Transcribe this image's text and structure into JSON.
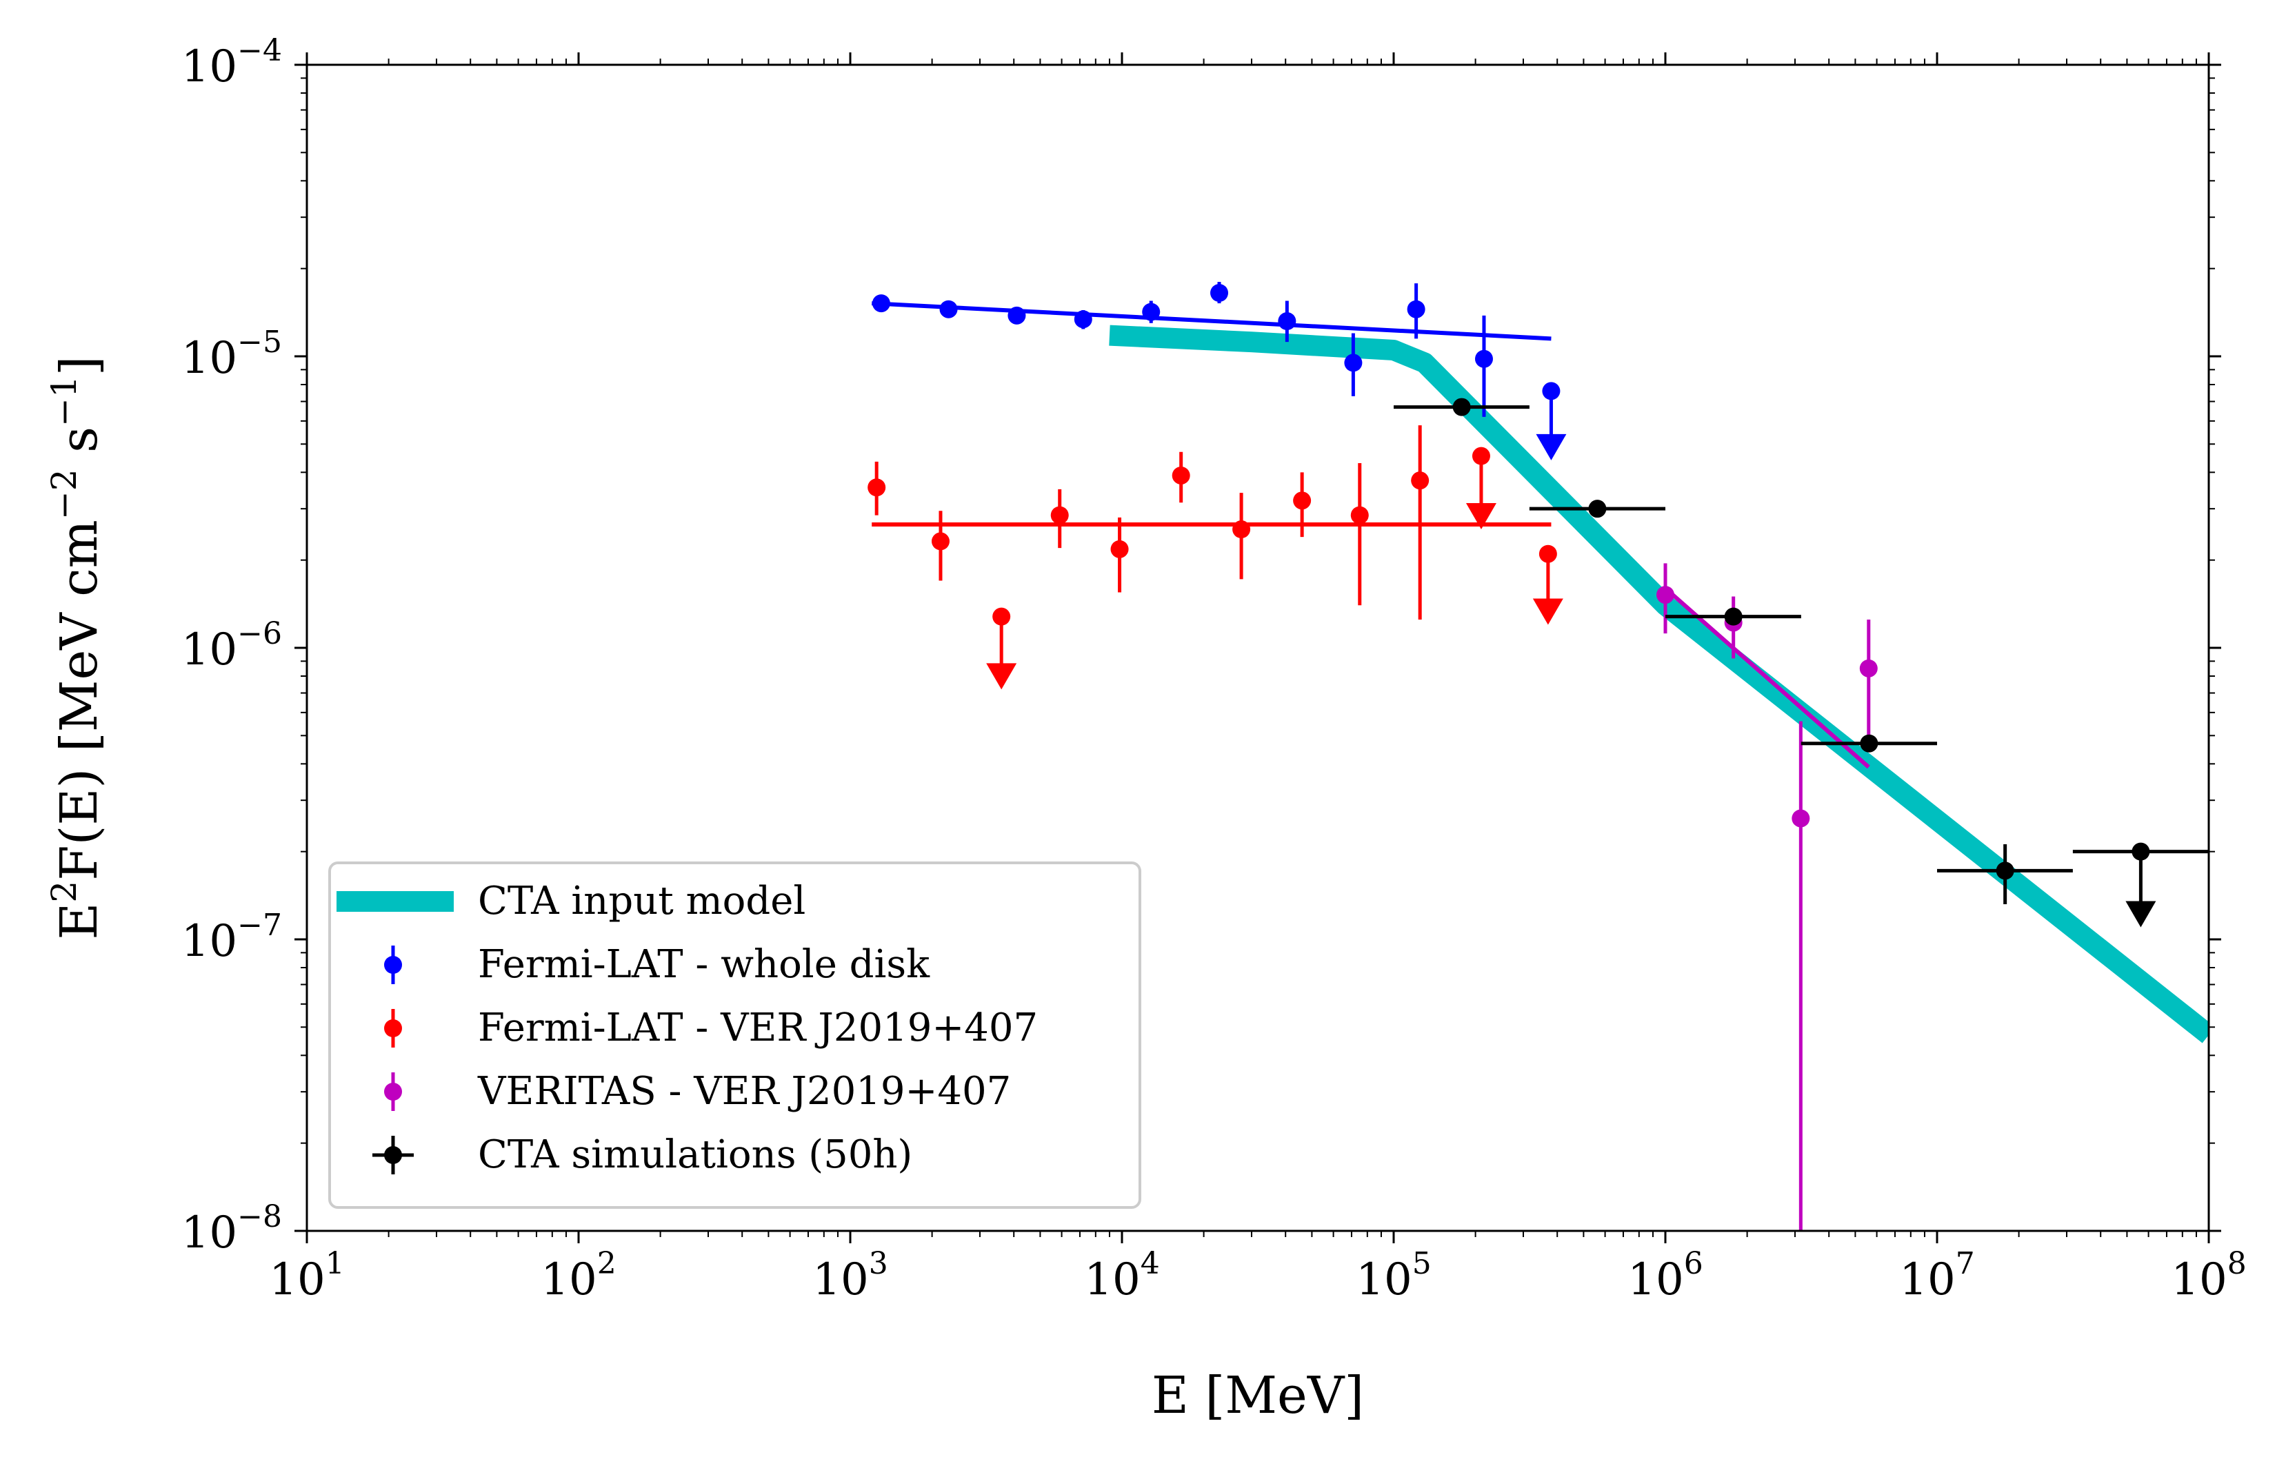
{
  "chart_data": {
    "type": "scatter",
    "x_scale": "log",
    "y_scale": "log",
    "xlim": [
      10,
      100000000
    ],
    "ylim": [
      1e-08,
      0.0001
    ],
    "xlabel_text": "E [MeV]",
    "ylabel_prefix": "E",
    "ylabel_prefix_sup": "2",
    "ylabel_main": "F(E) [MeV cm",
    "ylabel_sup1": "−2",
    "ylabel_mid": " s",
    "ylabel_sup2": "−1",
    "ylabel_suffix": "]",
    "x_ticks": [
      {
        "value": 10,
        "base": "10",
        "exp": "1"
      },
      {
        "value": 100,
        "base": "10",
        "exp": "2"
      },
      {
        "value": 1000,
        "base": "10",
        "exp": "3"
      },
      {
        "value": 10000,
        "base": "10",
        "exp": "4"
      },
      {
        "value": 100000,
        "base": "10",
        "exp": "5"
      },
      {
        "value": 1000000,
        "base": "10",
        "exp": "6"
      },
      {
        "value": 10000000,
        "base": "10",
        "exp": "7"
      },
      {
        "value": 100000000,
        "base": "10",
        "exp": "8"
      }
    ],
    "y_ticks": [
      {
        "value": 1e-08,
        "base": "10",
        "exp": "−8"
      },
      {
        "value": 1e-07,
        "base": "10",
        "exp": "−7"
      },
      {
        "value": 1e-06,
        "base": "10",
        "exp": "−6"
      },
      {
        "value": 1e-05,
        "base": "10",
        "exp": "−5"
      },
      {
        "value": 0.0001,
        "base": "10",
        "exp": "−4"
      }
    ],
    "legend_position": "lower-left",
    "series": [
      {
        "name": "CTA input model",
        "kind": "model",
        "color": "#00bfbf",
        "points": [
          [
            9000,
            1.18e-05
          ],
          [
            30000,
            1.12e-05
          ],
          [
            100000,
            1.05e-05
          ],
          [
            130000,
            9.5e-06
          ],
          [
            1000000,
            1.4e-06
          ],
          [
            100000000,
            4.7e-08
          ]
        ]
      },
      {
        "name": "Fermi-LAT - whole disk",
        "kind": "points",
        "color": "#0000ff",
        "fit": [
          [
            1200,
            1.52e-05
          ],
          [
            380000,
            1.15e-05
          ]
        ],
        "points": [
          {
            "x": 1300,
            "y": 1.52e-05,
            "ylo": 1.42e-05,
            "yhi": 1.62e-05
          },
          {
            "x": 2300,
            "y": 1.45e-05,
            "ylo": 1.37e-05,
            "yhi": 1.53e-05
          },
          {
            "x": 4100,
            "y": 1.38e-05,
            "ylo": 1.3e-05,
            "yhi": 1.46e-05
          },
          {
            "x": 7200,
            "y": 1.34e-05,
            "ylo": 1.24e-05,
            "yhi": 1.44e-05
          },
          {
            "x": 12800,
            "y": 1.42e-05,
            "ylo": 1.3e-05,
            "yhi": 1.55e-05
          },
          {
            "x": 22800,
            "y": 1.65e-05,
            "ylo": 1.52e-05,
            "yhi": 1.8e-05
          },
          {
            "x": 40500,
            "y": 1.32e-05,
            "ylo": 1.12e-05,
            "yhi": 1.55e-05
          },
          {
            "x": 71000,
            "y": 9.5e-06,
            "ylo": 7.3e-06,
            "yhi": 1.2e-05
          },
          {
            "x": 121000,
            "y": 1.45e-05,
            "ylo": 1.15e-05,
            "yhi": 1.78e-05
          },
          {
            "x": 215000,
            "y": 9.8e-06,
            "ylo": 6.2e-06,
            "yhi": 1.38e-05
          },
          {
            "x": 380000,
            "y": 7.6e-06,
            "upper_limit": true,
            "arrow_to": 4.4e-06
          }
        ]
      },
      {
        "name": "Fermi-LAT - VER J2019+407",
        "kind": "points",
        "color": "#ff0000",
        "fit": [
          [
            1200,
            2.65e-06
          ],
          [
            380000,
            2.65e-06
          ]
        ],
        "points": [
          {
            "x": 1250,
            "y": 3.55e-06,
            "ylo": 2.85e-06,
            "yhi": 4.35e-06
          },
          {
            "x": 2150,
            "y": 2.32e-06,
            "ylo": 1.7e-06,
            "yhi": 2.95e-06
          },
          {
            "x": 3600,
            "y": 1.28e-06,
            "upper_limit": true,
            "arrow_to": 7.2e-07
          },
          {
            "x": 5900,
            "y": 2.85e-06,
            "ylo": 2.2e-06,
            "yhi": 3.5e-06
          },
          {
            "x": 9800,
            "y": 2.18e-06,
            "ylo": 1.55e-06,
            "yhi": 2.8e-06
          },
          {
            "x": 16500,
            "y": 3.9e-06,
            "ylo": 3.15e-06,
            "yhi": 4.7e-06
          },
          {
            "x": 27500,
            "y": 2.55e-06,
            "ylo": 1.72e-06,
            "yhi": 3.4e-06
          },
          {
            "x": 46000,
            "y": 3.2e-06,
            "ylo": 2.4e-06,
            "yhi": 4e-06
          },
          {
            "x": 75000,
            "y": 2.85e-06,
            "ylo": 1.4e-06,
            "yhi": 4.3e-06
          },
          {
            "x": 125000,
            "y": 3.75e-06,
            "ylo": 1.25e-06,
            "yhi": 5.8e-06
          },
          {
            "x": 210000,
            "y": 4.55e-06,
            "upper_limit": true,
            "arrow_to": 2.55e-06
          },
          {
            "x": 370000,
            "y": 2.1e-06,
            "upper_limit": true,
            "arrow_to": 1.2e-06
          }
        ]
      },
      {
        "name": "VERITAS - VER J2019+407",
        "kind": "points",
        "color": "#bf00bf",
        "fit": [
          [
            1000000,
            1.6e-06
          ],
          [
            5600000,
            3.9e-07
          ]
        ],
        "points": [
          {
            "x": 1000000,
            "y": 1.52e-06,
            "ylo": 1.12e-06,
            "yhi": 1.95e-06
          },
          {
            "x": 1780000,
            "y": 1.22e-06,
            "ylo": 9.2e-07,
            "yhi": 1.5e-06
          },
          {
            "x": 3150000,
            "y": 2.6e-07,
            "ylo": 1e-08,
            "yhi": 5.6e-07
          },
          {
            "x": 5600000,
            "y": 8.5e-07,
            "ylo": 5e-07,
            "yhi": 1.25e-06
          }
        ]
      },
      {
        "name": "CTA simulations (50h)",
        "kind": "points",
        "color": "#000000",
        "points": [
          {
            "x": 178000,
            "y": 6.7e-06,
            "xlo": 100000,
            "xhi": 316000
          },
          {
            "x": 562000,
            "y": 3e-06,
            "xlo": 316000,
            "xhi": 1000000
          },
          {
            "x": 1780000,
            "y": 1.28e-06,
            "xlo": 1000000,
            "xhi": 3160000
          },
          {
            "x": 5620000,
            "y": 4.7e-07,
            "xlo": 3160000,
            "xhi": 10000000
          },
          {
            "x": 17800000,
            "y": 1.72e-07,
            "xlo": 10000000,
            "xhi": 31600000,
            "ylo": 1.32e-07,
            "yhi": 2.12e-07
          },
          {
            "x": 56200000,
            "y": 2e-07,
            "xlo": 31600000,
            "xhi": 100000000,
            "upper_limit": true,
            "arrow_to": 1.1e-07
          }
        ]
      }
    ]
  }
}
